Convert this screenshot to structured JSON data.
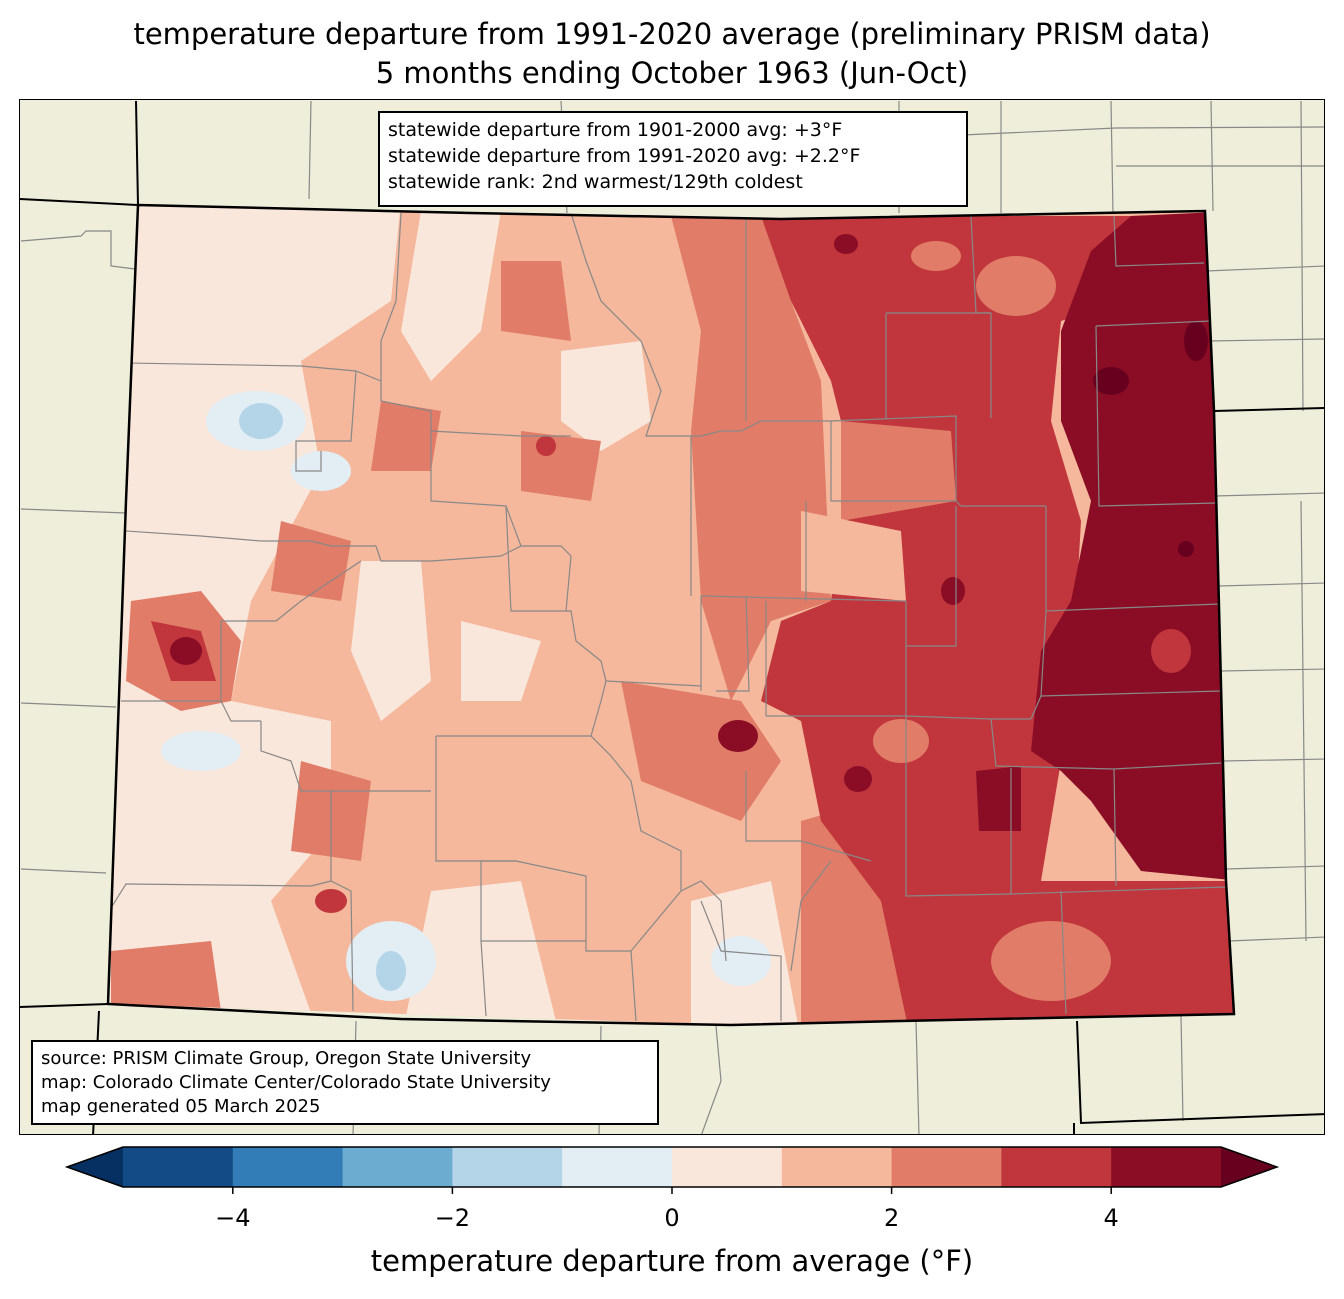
{
  "title": {
    "line1": "temperature departure from 1991-2020 average (preliminary PRISM data)",
    "line2": "5 months ending October 1963 (Jun-Oct)"
  },
  "stats": {
    "line1": "statewide departure from 1901-2000 avg: +3°F",
    "line2": "statewide departure from 1991-2020 avg: +2.2°F",
    "line3": "statewide rank: 2nd warmest/129th coldest"
  },
  "credits": {
    "line1": "source: PRISM Climate Group, Oregon State University",
    "line2": "map: Colorado Climate Center/Colorado State University",
    "line3": "map generated 05 March 2025"
  },
  "colorbar": {
    "label": "temperature departure from average (°F)",
    "range": [
      -5,
      5
    ],
    "ticks": [
      {
        "value": -4,
        "label": "−4"
      },
      {
        "value": -2,
        "label": "−2"
      },
      {
        "value": 0,
        "label": "0"
      },
      {
        "value": 2,
        "label": "2"
      },
      {
        "value": 4,
        "label": "4"
      }
    ],
    "bins": [
      {
        "min": -5,
        "max": -4,
        "color": "#134b87"
      },
      {
        "min": -4,
        "max": -3,
        "color": "#327db7"
      },
      {
        "min": -3,
        "max": -2,
        "color": "#6bacd0"
      },
      {
        "min": -2,
        "max": -1,
        "color": "#b3d5e7"
      },
      {
        "min": -1,
        "max": 0,
        "color": "#e3edf4"
      },
      {
        "min": 0,
        "max": 1,
        "color": "#fae7dc"
      },
      {
        "min": 1,
        "max": 2,
        "color": "#f5b89c"
      },
      {
        "min": 2,
        "max": 3,
        "color": "#e07c67"
      },
      {
        "min": 3,
        "max": 4,
        "color": "#c0363c"
      },
      {
        "min": 4,
        "max": 5,
        "color": "#8a0d25"
      }
    ],
    "under_color": "#053061",
    "over_color": "#67001f"
  },
  "map_colors": {
    "background": "#efeedb",
    "c_minus_1": "#e3edf4",
    "c_minus_2": "#b3d5e7",
    "c_0": "#fae7dc",
    "c_1": "#f5b89c",
    "c_2": "#e07c67",
    "c_3": "#c0363c",
    "c_4": "#8a0d25",
    "c_5": "#67001f"
  }
}
